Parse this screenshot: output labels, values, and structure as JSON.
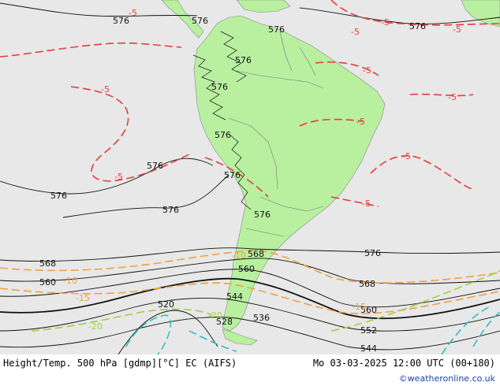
{
  "header": {
    "title": "Height/Temp. 500 hPa [gdmp][°C] EC (AIFS)",
    "valid_time": "Mo 03-03-2025 12:00 UTC (00+180)"
  },
  "credit": "©weatheronline.co.uk",
  "colors": {
    "sea": "#e8e8e8",
    "land": "#b8f0a0",
    "height_contour": "#000000",
    "temp_minus5": "#e83c3c",
    "temp_minus10": "#f0a040",
    "temp_minus15": "#f0a040",
    "temp_minus20": "#a0d040",
    "temp_minus25": "#30c0c0"
  },
  "height_labels": [
    "576",
    "576",
    "576",
    "576",
    "576",
    "576",
    "576",
    "576",
    "576",
    "576",
    "576",
    "576",
    "576",
    "568",
    "568",
    "568",
    "560",
    "560",
    "560",
    "552",
    "544",
    "544",
    "536",
    "528",
    "520"
  ],
  "temp_labels": [
    "-5",
    "-5",
    "-5",
    "-5",
    "-5",
    "-5",
    "-5",
    "-5",
    "-5",
    "-5",
    "-5",
    "-10",
    "-10",
    "-15",
    "-15",
    "-20",
    "-20"
  ]
}
